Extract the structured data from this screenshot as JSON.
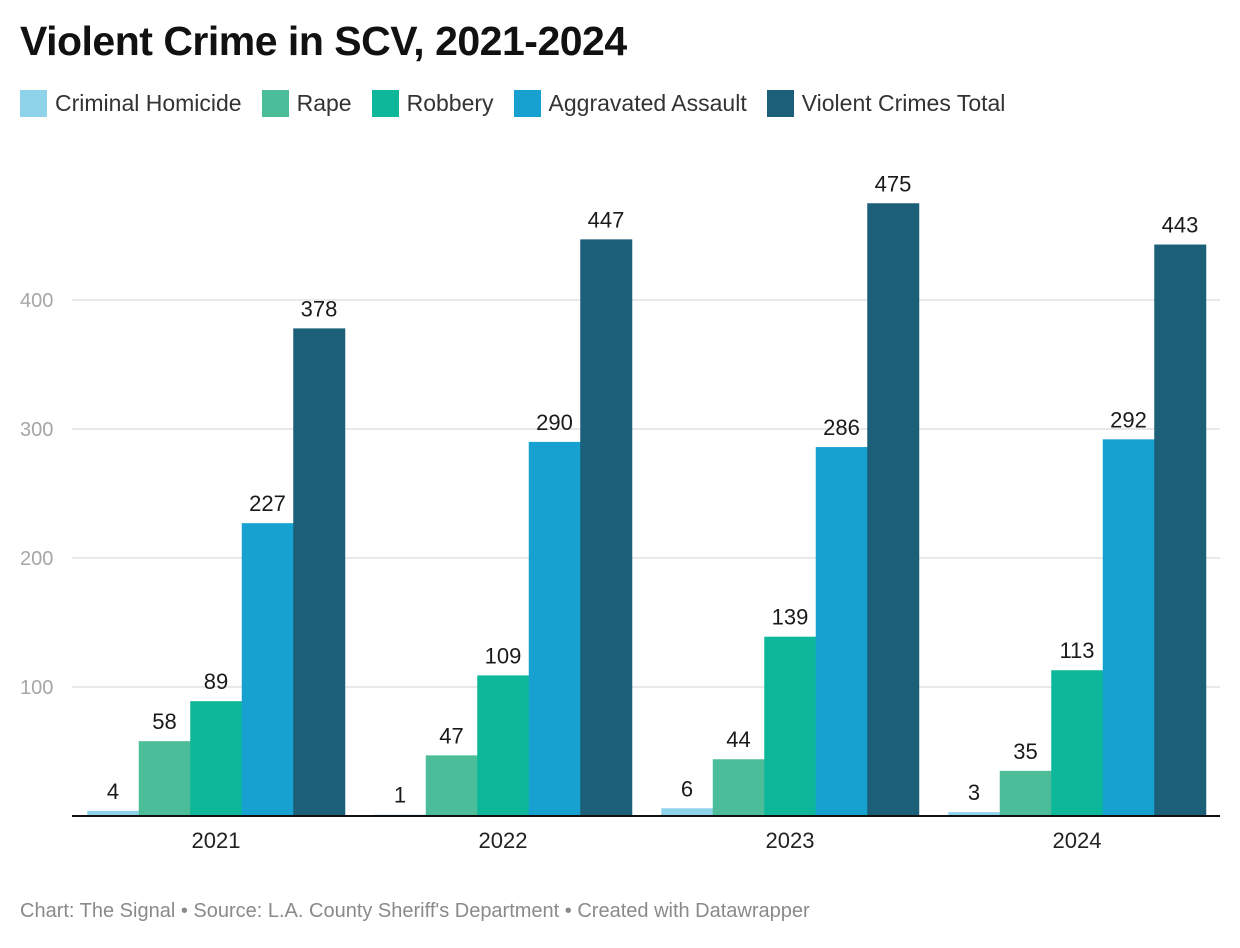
{
  "title": "Violent Crime in SCV, 2021-2024",
  "footer": "Chart: The Signal • Source: L.A. County Sheriff's Department • Created with Datawrapper",
  "chart_data": {
    "type": "bar",
    "title": "Violent Crime in SCV, 2021-2024",
    "xlabel": "",
    "ylabel": "",
    "ylim": [
      0,
      475
    ],
    "y_ticks": [
      100,
      200,
      300,
      400
    ],
    "grid": true,
    "legend_position": "top-left",
    "categories": [
      "2021",
      "2022",
      "2023",
      "2024"
    ],
    "series": [
      {
        "name": "Criminal Homicide",
        "color": "#8fd3ea",
        "values": [
          4,
          1,
          6,
          3
        ]
      },
      {
        "name": "Rape",
        "color": "#4bbd98",
        "values": [
          58,
          47,
          44,
          35
        ]
      },
      {
        "name": "Robbery",
        "color": "#0db79a",
        "values": [
          89,
          109,
          139,
          113
        ]
      },
      {
        "name": "Aggravated Assault",
        "color": "#16a1d1",
        "values": [
          227,
          290,
          286,
          292
        ]
      },
      {
        "name": "Violent Crimes Total",
        "color": "#1b5f78",
        "values": [
          378,
          447,
          475,
          443
        ]
      }
    ]
  }
}
